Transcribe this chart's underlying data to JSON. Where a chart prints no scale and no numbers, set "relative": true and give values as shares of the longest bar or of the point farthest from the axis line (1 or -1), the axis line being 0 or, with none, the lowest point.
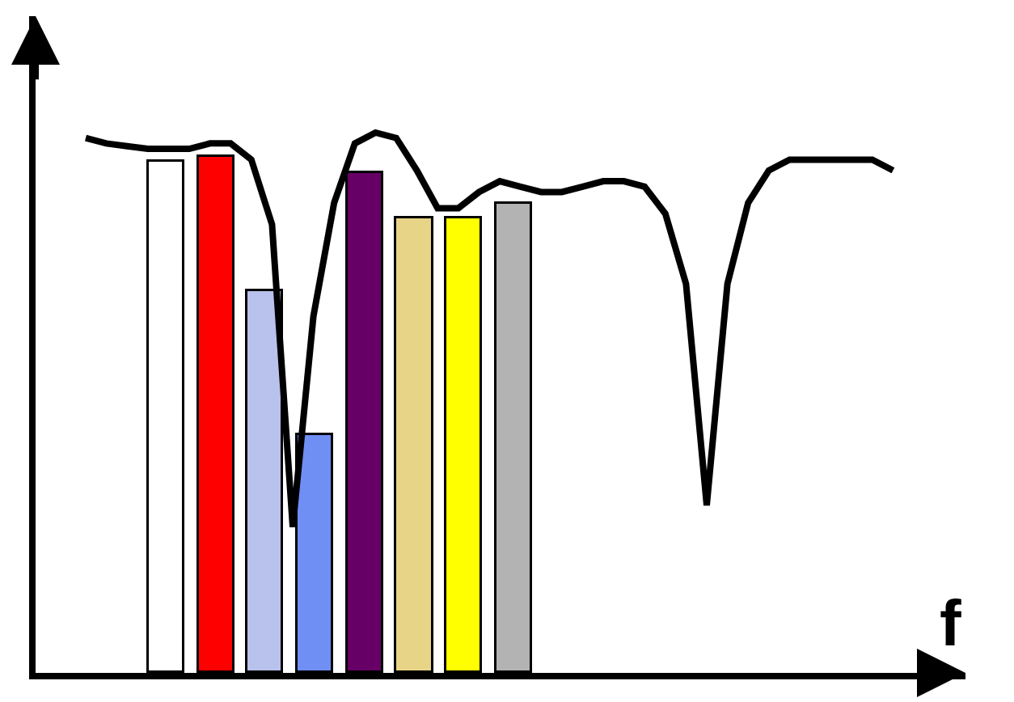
{
  "chart_data": [
    {
      "type": "bar",
      "relative": true,
      "categories": [
        null,
        null,
        null,
        null,
        null,
        null,
        null,
        null
      ],
      "colors": [
        "#ffffff",
        "#ff0000",
        "#b8c2ec",
        "#6f8ff5",
        "#660066",
        "#e8d487",
        "#ffff00",
        "#b3b3b3"
      ],
      "values": [
        0.99,
        1.0,
        0.74,
        0.46,
        0.97,
        0.88,
        0.88,
        0.91
      ]
    },
    {
      "type": "line",
      "relative": true,
      "color": "#000000",
      "xlabel": "f",
      "categories": [
        null,
        null,
        null,
        null,
        null,
        null,
        null,
        null,
        null,
        null,
        null,
        null,
        null,
        null,
        null,
        null,
        null,
        null,
        null,
        null,
        null,
        null,
        null,
        null,
        null,
        null,
        null,
        null,
        null,
        null,
        null,
        null,
        null,
        null,
        null,
        null,
        null,
        null,
        null,
        null
      ],
      "values": [
        0.99,
        0.98,
        0.975,
        0.97,
        0.97,
        0.97,
        0.98,
        0.98,
        0.95,
        0.83,
        0.27,
        0.66,
        0.87,
        0.98,
        1.0,
        0.99,
        0.93,
        0.86,
        0.86,
        0.89,
        0.91,
        0.9,
        0.89,
        0.89,
        0.9,
        0.91,
        0.91,
        0.9,
        0.85,
        0.72,
        0.31,
        0.72,
        0.87,
        0.93,
        0.95,
        0.95,
        0.95,
        0.95,
        0.95,
        0.93
      ]
    }
  ]
}
